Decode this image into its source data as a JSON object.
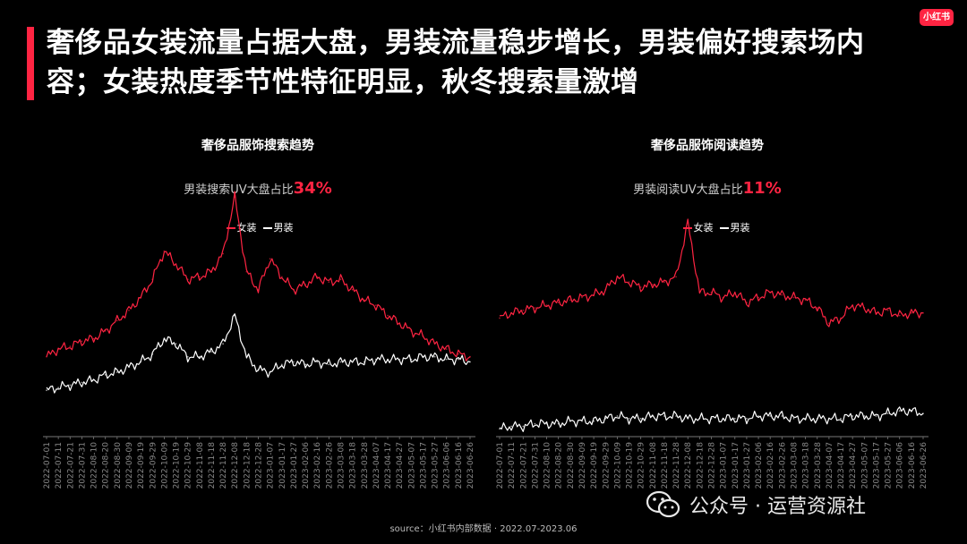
{
  "header": {
    "headline": "奢侈品女装流量占据大盘，男装流量稳步增长，男装偏好搜索场内容；女装热度季节性特征明显，秋冬搜索量激增",
    "logo_text": "小红书",
    "accent_color": "#ff2442"
  },
  "charts": [
    {
      "title": "奢侈品服饰搜索趋势",
      "subtitle_prefix": "男装搜索UV大盘占比",
      "subtitle_value": "34%",
      "legend": [
        "女装",
        "男装"
      ]
    },
    {
      "title": "奢侈品服饰阅读趋势",
      "subtitle_prefix": "男装阅读UV大盘占比",
      "subtitle_value": "11%",
      "legend": [
        "女装",
        "男装"
      ]
    }
  ],
  "chart_data": [
    {
      "type": "line",
      "title": "奢侈品服饰搜索趋势",
      "x": [
        "2022-07-01",
        "2022-07-11",
        "2022-07-21",
        "2022-07-31",
        "2022-08-10",
        "2022-08-20",
        "2022-08-30",
        "2022-09-09",
        "2022-09-19",
        "2022-09-29",
        "2022-10-09",
        "2022-10-19",
        "2022-10-29",
        "2022-11-08",
        "2022-11-18",
        "2022-11-28",
        "2022-12-08",
        "2022-12-18",
        "2022-12-28",
        "2023-01-07",
        "2023-01-17",
        "2023-01-27",
        "2023-02-06",
        "2023-02-16",
        "2023-02-26",
        "2023-03-08",
        "2023-03-18",
        "2023-03-28",
        "2023-04-07",
        "2023-04-17",
        "2023-04-27",
        "2023-05-07",
        "2023-05-17",
        "2023-05-27",
        "2023-06-06",
        "2023-06-16",
        "2023-06-26"
      ],
      "ylim": [
        0,
        100
      ],
      "series": [
        {
          "name": "女装",
          "color": "#ff2442",
          "values": [
            31,
            34,
            35,
            37,
            38,
            41,
            45,
            49,
            54,
            61,
            72,
            67,
            61,
            62,
            64,
            71,
            93,
            64,
            57,
            69,
            62,
            57,
            59,
            62,
            60,
            61,
            57,
            53,
            51,
            47,
            44,
            41,
            39,
            36,
            34,
            32,
            31
          ]
        },
        {
          "name": "男装",
          "color": "#ffffff",
          "values": [
            18,
            19,
            20,
            21,
            22,
            24,
            25,
            27,
            29,
            32,
            38,
            36,
            31,
            31,
            33,
            36,
            47,
            31,
            26,
            25,
            28,
            29,
            28,
            29,
            28,
            29,
            29,
            29,
            30,
            30,
            30,
            30,
            31,
            31,
            30,
            30,
            29
          ]
        }
      ]
    },
    {
      "type": "line",
      "title": "奢侈品服饰阅读趋势",
      "x": [
        "2022-07-01",
        "2022-07-11",
        "2022-07-21",
        "2022-07-31",
        "2022-08-10",
        "2022-08-20",
        "2022-08-30",
        "2022-09-09",
        "2022-09-19",
        "2022-09-29",
        "2022-10-09",
        "2022-10-19",
        "2022-10-29",
        "2022-11-08",
        "2022-11-18",
        "2022-11-28",
        "2022-12-08",
        "2022-12-18",
        "2022-12-28",
        "2023-01-07",
        "2023-01-17",
        "2023-01-27",
        "2023-02-06",
        "2023-02-16",
        "2023-02-26",
        "2023-03-08",
        "2023-03-18",
        "2023-03-28",
        "2023-04-07",
        "2023-04-17",
        "2023-04-27",
        "2023-05-07",
        "2023-05-17",
        "2023-05-27",
        "2023-06-06",
        "2023-06-16",
        "2023-06-26"
      ],
      "ylim": [
        0,
        100
      ],
      "series": [
        {
          "name": "女装",
          "color": "#ff2442",
          "values": [
            46,
            48,
            49,
            50,
            51,
            52,
            53,
            54,
            55,
            57,
            62,
            60,
            58,
            59,
            60,
            62,
            83,
            56,
            56,
            54,
            56,
            52,
            54,
            56,
            55,
            54,
            53,
            50,
            44,
            46,
            51,
            50,
            48,
            49,
            47,
            48,
            48
          ]
        },
        {
          "name": "男装",
          "color": "#ffffff",
          "values": [
            3,
            4,
            4,
            5,
            5,
            5,
            6,
            6,
            6,
            7,
            8,
            7,
            7,
            8,
            8,
            8,
            7,
            7,
            7,
            7,
            7,
            7,
            8,
            8,
            8,
            7,
            7,
            7,
            7,
            7,
            8,
            8,
            8,
            9,
            10,
            10,
            9
          ]
        }
      ]
    }
  ],
  "footer": {
    "source": "source：小红书内部数据 · 2022.07-2023.06",
    "watermark": "公众号 · 运营资源社",
    "watermark_icon": "wechat-icon"
  }
}
